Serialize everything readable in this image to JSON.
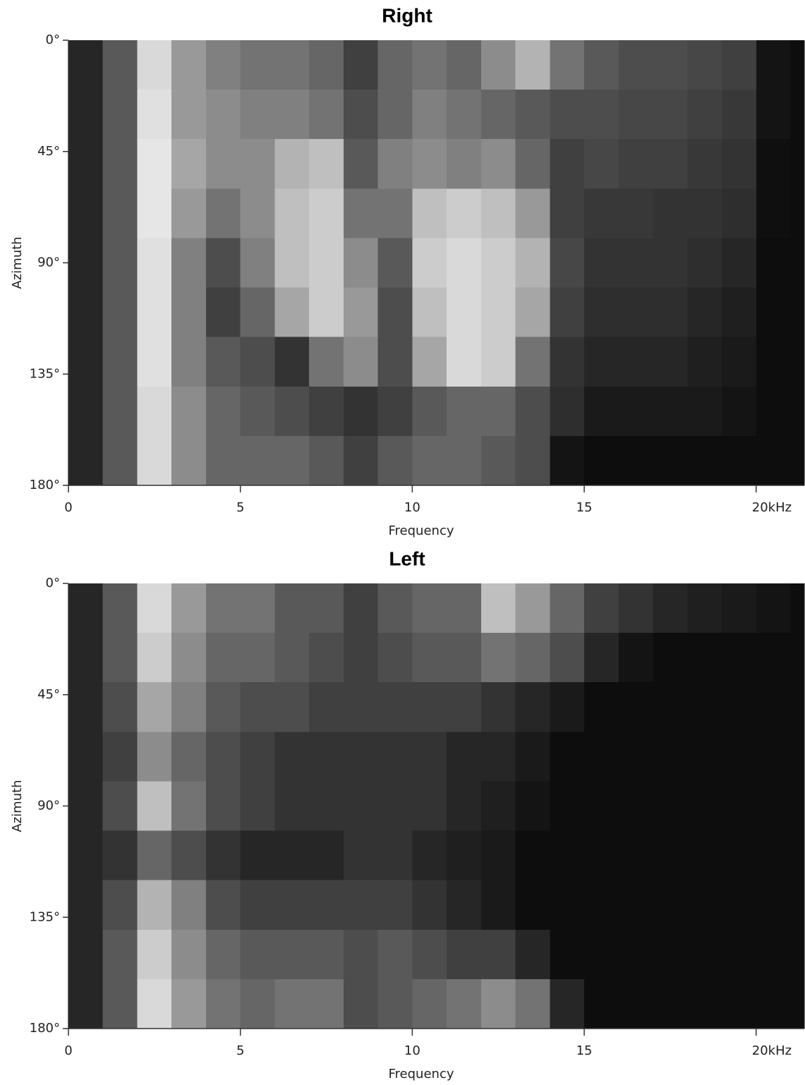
{
  "chart_data": [
    {
      "type": "heatmap",
      "title": "Right",
      "x_label": "Frequency",
      "y_label": "Azimuth",
      "colormap": "gray",
      "vlim": [
        0,
        100
      ],
      "y_inverted": true,
      "xlim": [
        0,
        21.4
      ],
      "ylim": [
        0,
        180
      ],
      "xticks": [
        0,
        5,
        10,
        15,
        {
          "value": 20,
          "label": "20kHz"
        }
      ],
      "yticks": [
        {
          "value": 0,
          "label": "0°"
        },
        {
          "value": 45,
          "label": "45°"
        },
        {
          "value": 90,
          "label": "90°"
        },
        {
          "value": 135,
          "label": "135°"
        },
        {
          "value": 180,
          "label": "180°"
        }
      ],
      "xbins": [
        0,
        1,
        2,
        3,
        4,
        5,
        6,
        7,
        8,
        9,
        10,
        11,
        12,
        13,
        14,
        15,
        16,
        17,
        18,
        19,
        20,
        21,
        21.4
      ],
      "ybins": [
        0,
        20,
        40,
        60,
        80,
        100,
        120,
        140,
        160,
        180
      ],
      "values": [
        [
          15,
          35,
          85,
          60,
          50,
          45,
          45,
          40,
          25,
          40,
          45,
          40,
          55,
          70,
          45,
          35,
          30,
          30,
          28,
          25,
          8,
          5
        ],
        [
          15,
          35,
          88,
          60,
          55,
          50,
          50,
          45,
          30,
          40,
          50,
          45,
          40,
          35,
          30,
          30,
          28,
          28,
          25,
          22,
          8,
          5
        ],
        [
          15,
          35,
          90,
          65,
          55,
          55,
          70,
          75,
          35,
          50,
          55,
          50,
          55,
          40,
          25,
          28,
          25,
          25,
          22,
          20,
          6,
          5
        ],
        [
          15,
          35,
          90,
          60,
          45,
          55,
          75,
          80,
          45,
          45,
          75,
          80,
          75,
          60,
          25,
          22,
          22,
          20,
          20,
          18,
          6,
          5
        ],
        [
          15,
          35,
          88,
          50,
          30,
          50,
          75,
          80,
          55,
          35,
          80,
          85,
          80,
          70,
          28,
          20,
          20,
          20,
          18,
          15,
          5,
          5
        ],
        [
          15,
          35,
          88,
          50,
          25,
          40,
          65,
          80,
          60,
          30,
          75,
          85,
          80,
          65,
          25,
          18,
          18,
          18,
          15,
          12,
          5,
          5
        ],
        [
          15,
          35,
          88,
          50,
          35,
          30,
          20,
          45,
          55,
          30,
          65,
          85,
          80,
          45,
          20,
          15,
          15,
          15,
          12,
          10,
          5,
          5
        ],
        [
          15,
          35,
          85,
          55,
          40,
          35,
          30,
          25,
          20,
          25,
          35,
          40,
          40,
          30,
          18,
          10,
          10,
          10,
          10,
          8,
          5,
          5
        ],
        [
          15,
          35,
          85,
          55,
          40,
          40,
          40,
          35,
          25,
          35,
          40,
          40,
          35,
          30,
          8,
          5,
          5,
          5,
          5,
          5,
          5,
          5
        ]
      ]
    },
    {
      "type": "heatmap",
      "title": "Left",
      "x_label": "Frequency",
      "y_label": "Azimuth",
      "colormap": "gray",
      "vlim": [
        0,
        100
      ],
      "y_inverted": true,
      "xlim": [
        0,
        21.4
      ],
      "ylim": [
        0,
        180
      ],
      "xticks": [
        0,
        5,
        10,
        15,
        {
          "value": 20,
          "label": "20kHz"
        }
      ],
      "yticks": [
        {
          "value": 0,
          "label": "0°"
        },
        {
          "value": 45,
          "label": "45°"
        },
        {
          "value": 90,
          "label": "90°"
        },
        {
          "value": 135,
          "label": "135°"
        },
        {
          "value": 180,
          "label": "180°"
        }
      ],
      "xbins": [
        0,
        1,
        2,
        3,
        4,
        5,
        6,
        7,
        8,
        9,
        10,
        11,
        12,
        13,
        14,
        15,
        16,
        17,
        18,
        19,
        20,
        21,
        21.4
      ],
      "ybins": [
        0,
        20,
        40,
        60,
        80,
        100,
        120,
        140,
        160,
        180
      ],
      "values": [
        [
          15,
          35,
          85,
          60,
          45,
          45,
          35,
          35,
          25,
          35,
          40,
          40,
          75,
          60,
          40,
          25,
          20,
          15,
          12,
          10,
          8,
          5
        ],
        [
          15,
          35,
          80,
          55,
          40,
          40,
          35,
          30,
          25,
          30,
          35,
          35,
          45,
          40,
          30,
          15,
          8,
          5,
          5,
          5,
          5,
          5
        ],
        [
          15,
          30,
          65,
          50,
          35,
          30,
          30,
          25,
          25,
          25,
          25,
          25,
          20,
          15,
          10,
          5,
          5,
          5,
          5,
          5,
          5,
          5
        ],
        [
          15,
          25,
          55,
          40,
          30,
          25,
          20,
          20,
          20,
          20,
          20,
          15,
          15,
          10,
          5,
          5,
          5,
          5,
          5,
          5,
          5,
          5
        ],
        [
          15,
          30,
          75,
          45,
          30,
          25,
          20,
          20,
          20,
          20,
          20,
          15,
          12,
          8,
          5,
          5,
          5,
          5,
          5,
          5,
          5,
          5
        ],
        [
          15,
          20,
          40,
          30,
          20,
          15,
          15,
          15,
          20,
          20,
          15,
          12,
          10,
          5,
          5,
          5,
          5,
          5,
          5,
          5,
          5,
          5
        ],
        [
          15,
          30,
          70,
          50,
          30,
          25,
          25,
          25,
          25,
          25,
          20,
          15,
          10,
          5,
          5,
          5,
          5,
          5,
          5,
          5,
          5,
          5
        ],
        [
          15,
          35,
          80,
          55,
          40,
          35,
          35,
          35,
          30,
          35,
          30,
          25,
          25,
          15,
          5,
          5,
          5,
          5,
          5,
          5,
          5,
          5
        ],
        [
          15,
          35,
          85,
          60,
          45,
          40,
          45,
          45,
          30,
          35,
          40,
          45,
          55,
          45,
          15,
          5,
          5,
          5,
          5,
          5,
          5,
          5
        ]
      ]
    }
  ]
}
